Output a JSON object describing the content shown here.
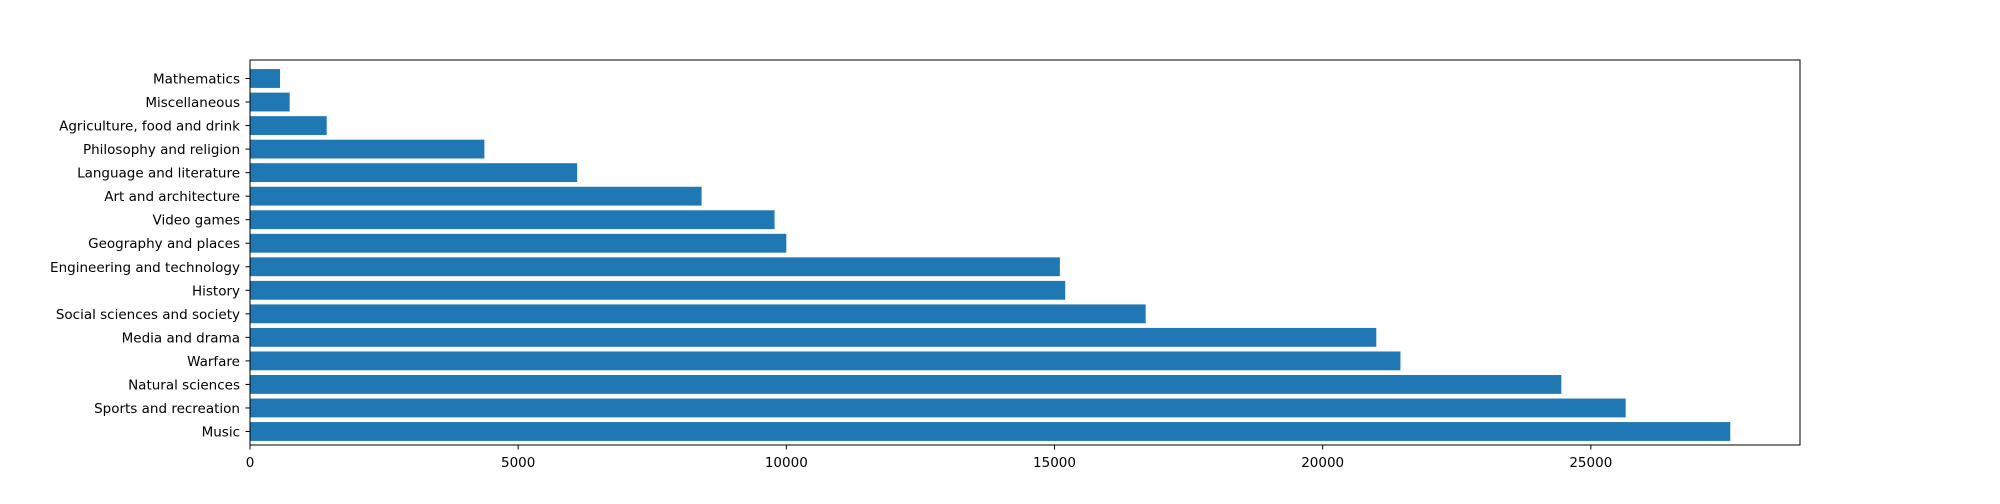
{
  "chart_data": {
    "type": "bar",
    "orientation": "horizontal",
    "title": "",
    "xlabel": "",
    "ylabel": "",
    "xlim": [
      0,
      28900
    ],
    "xticks": [
      0,
      5000,
      10000,
      15000,
      20000,
      25000
    ],
    "xtick_labels": [
      "0",
      "5000",
      "10000",
      "15000",
      "20000",
      "25000"
    ],
    "grid": false,
    "bar_color": "#1f77b4",
    "categories": [
      "Music",
      "Sports and recreation",
      "Natural sciences",
      "Warfare",
      "Media and drama",
      "Social sciences and society",
      "History",
      "Engineering and technology",
      "Geography and places",
      "Video games",
      "Art and architecture",
      "Language and literature",
      "Philosophy and religion",
      "Agriculture, food and drink",
      "Miscellaneous",
      "Mathematics"
    ],
    "values": [
      27600,
      25650,
      24450,
      21450,
      21000,
      16700,
      15200,
      15100,
      10000,
      9780,
      8420,
      6100,
      4370,
      1430,
      740,
      560
    ]
  }
}
